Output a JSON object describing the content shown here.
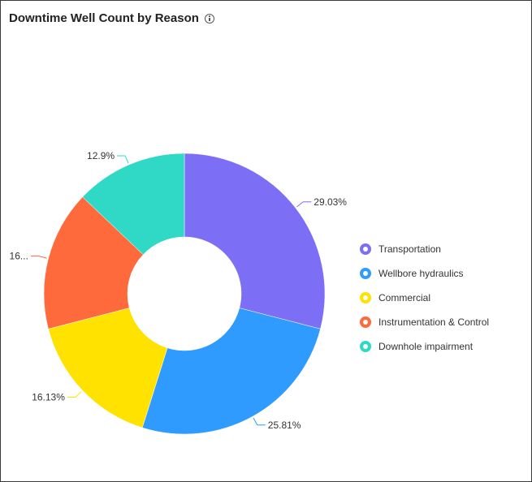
{
  "header": {
    "title": "Downtime Well Count by Reason",
    "info_icon": "info-icon"
  },
  "chart_data": {
    "type": "pie",
    "donut": true,
    "title": "Downtime Well Count by Reason",
    "legend_position": "right",
    "categories": [
      "Transportation",
      "Wellbore hydraulics",
      "Commercial",
      "Instrumentation & Control",
      "Downhole impairment"
    ],
    "values": [
      29.03,
      25.81,
      16.13,
      16.13,
      12.9
    ],
    "labels": [
      "29.03%",
      "25.81%",
      "16.13%",
      "16...",
      "12.9%"
    ],
    "colors": [
      "#7c6ef5",
      "#2f9bff",
      "#ffe200",
      "#ff6a3d",
      "#2fd9c5"
    ]
  }
}
